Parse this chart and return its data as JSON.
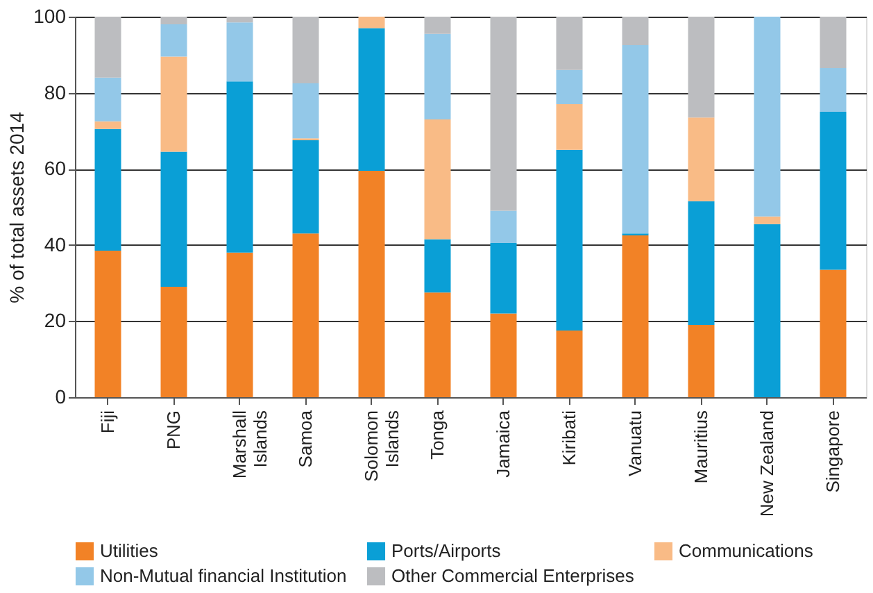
{
  "chart_data": {
    "type": "bar",
    "stacked": true,
    "ylabel": "% of total assets 2014",
    "categories": [
      "Fiji",
      "PNG",
      "Marshall\nIslands",
      "Samoa",
      "Solomon\nIslands",
      "Tonga",
      "Jamaica",
      "Kiribati",
      "Vanuatu",
      "Mauritius",
      "New Zealand",
      "Singapore"
    ],
    "series": [
      {
        "name": "Utilities",
        "color": "#f28226",
        "values": [
          38.5,
          29,
          38,
          43,
          59.5,
          27.5,
          22,
          17.5,
          42.5,
          19,
          0,
          33.5
        ]
      },
      {
        "name": "Ports/Airports",
        "color": "#0a9fd6",
        "values": [
          32,
          35.5,
          45,
          24.5,
          37.5,
          14,
          18.5,
          47.5,
          0.5,
          32.5,
          45.5,
          41.5
        ]
      },
      {
        "name": "Communications",
        "color": "#f9bb86",
        "values": [
          2,
          25,
          0,
          0.5,
          3,
          31.5,
          0,
          12,
          0,
          22,
          2,
          0
        ]
      },
      {
        "name": "Non-Mutual financial Institution",
        "color": "#93c8e8",
        "values": [
          11.5,
          8.5,
          15.5,
          14.5,
          0,
          22.5,
          8.5,
          9,
          49.5,
          0,
          52.5,
          11.5
        ]
      },
      {
        "name": "Other Commercial Enterprises",
        "color": "#bcbdc0",
        "values": [
          16,
          2,
          1.5,
          17.5,
          0,
          4.5,
          51,
          14,
          7.5,
          26.5,
          0,
          13.5
        ]
      }
    ],
    "ylim": [
      0,
      100
    ],
    "yticks": [
      0,
      20,
      40,
      60,
      80,
      100
    ],
    "grid": "y",
    "legend": "bottom"
  }
}
